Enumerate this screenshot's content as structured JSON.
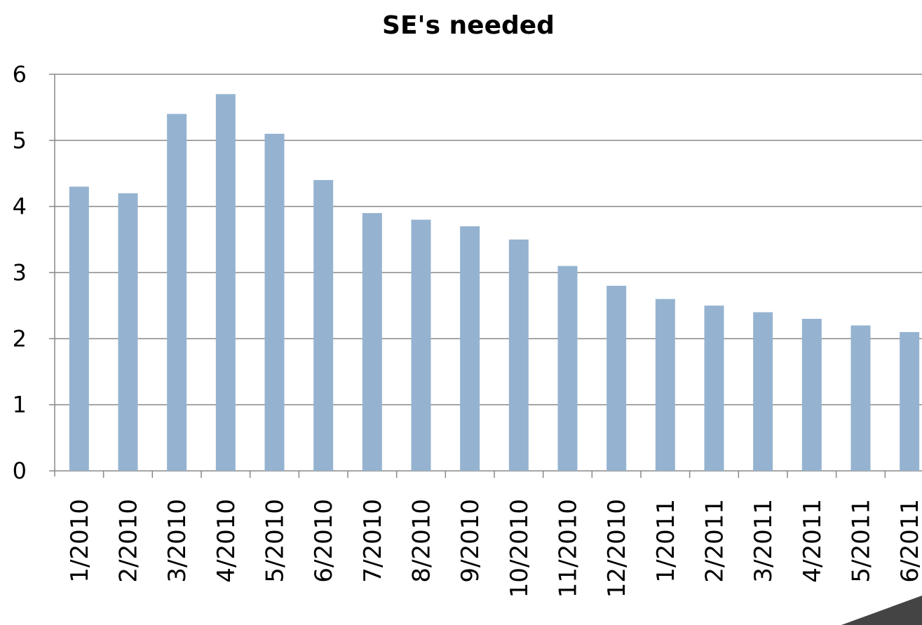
{
  "chart_data": {
    "type": "bar",
    "title": "SE's needed",
    "categories": [
      "1/2010",
      "2/2010",
      "3/2010",
      "4/2010",
      "5/2010",
      "6/2010",
      "7/2010",
      "8/2010",
      "9/2010",
      "10/2010",
      "11/2010",
      "12/2010",
      "1/2011",
      "2/2011",
      "3/2011",
      "4/2011",
      "5/2011",
      "6/2011"
    ],
    "values": [
      4.3,
      4.2,
      5.4,
      5.7,
      5.1,
      4.4,
      3.9,
      3.8,
      3.7,
      3.5,
      3.1,
      2.8,
      2.6,
      2.5,
      2.4,
      2.3,
      2.2,
      2.1
    ],
    "color": "#95b3d0",
    "ylim": [
      0,
      6
    ],
    "yticks": [
      0,
      1,
      2,
      3,
      4,
      5,
      6
    ],
    "grid": true
  }
}
